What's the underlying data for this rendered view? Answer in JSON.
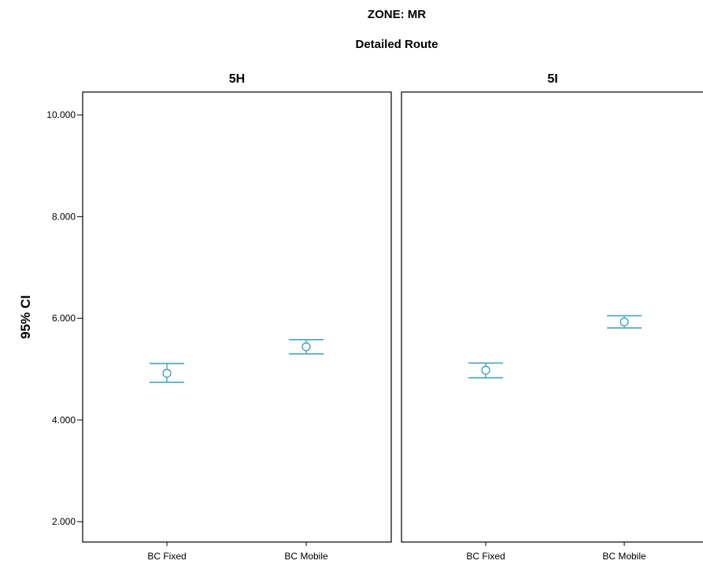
{
  "chart_data": {
    "type": "errorbar",
    "title": "ZONE: MR",
    "subtitle": "Detailed Route",
    "ylabel": "95% CI",
    "xlabel": "",
    "ylim": [
      1.6,
      10.45
    ],
    "y_ticks": [
      2.0,
      4.0,
      6.0,
      8.0,
      10.0
    ],
    "y_tick_labels": [
      "2.000",
      "4.000",
      "6.000",
      "8.000",
      "10.000"
    ],
    "categories": [
      "BC Fixed",
      "BC Mobile"
    ],
    "marker_color": "#3a9db8",
    "panels": [
      {
        "name": "5H",
        "points": [
          {
            "category": "BC Fixed",
            "mean": 4.92,
            "lower": 4.74,
            "upper": 5.11
          },
          {
            "category": "BC Mobile",
            "mean": 5.44,
            "lower": 5.3,
            "upper": 5.58
          }
        ]
      },
      {
        "name": "5I",
        "points": [
          {
            "category": "BC Fixed",
            "mean": 4.98,
            "lower": 4.83,
            "upper": 5.12
          },
          {
            "category": "BC Mobile",
            "mean": 5.93,
            "lower": 5.81,
            "upper": 6.05
          }
        ]
      }
    ]
  }
}
